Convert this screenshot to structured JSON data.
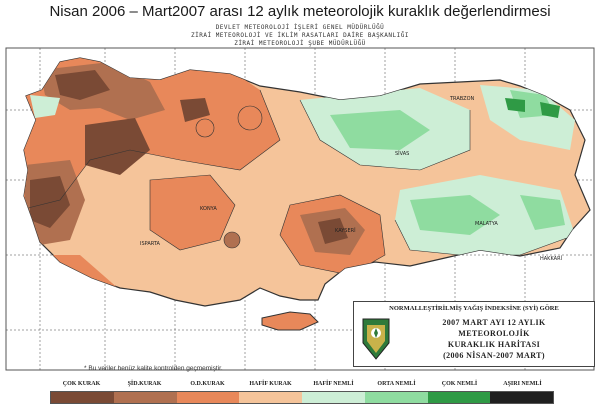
{
  "title": "Nisan 2006 – Mart2007 arası 12 aylık meteorolojik kuraklık değerlendirmesi",
  "institution": {
    "line1": "DEVLET METEOROLOJİ İŞLERİ GENEL MÜDÜRLÜĞÜ",
    "line2": "ZİRAİ METEOROLOJİ VE İKLİM RASATLARI DAİRE BAŞKANLIĞI",
    "line3": "ZİRAİ METEOROLOJİ ŞUBE MÜDÜRLÜĞÜ"
  },
  "legend_box": {
    "heading": "NORMALLEŞTİRİLMİŞ YAĞIŞ İNDEKSİNE (SYİ) GÖRE",
    "line1": "2007 MART AYI 12 AYLIK",
    "line2": "METEOROLOJİK",
    "line3": "KURAKLIK HARİTASI",
    "line4": "(2006 NİSAN-2007 MART)"
  },
  "footnote": "* Bu veriler henüz kalite kontrolden geçmemiştir.",
  "scale": [
    {
      "label": "ÇOK KURAK",
      "color": "#7a4a35"
    },
    {
      "label": "ŞİD.KURAK",
      "color": "#b07050"
    },
    {
      "label": "O.D.KURAK",
      "color": "#e8885a"
    },
    {
      "label": "HAFİF KURAK",
      "color": "#f5c49a"
    },
    {
      "label": "HAFİF NEMLİ",
      "color": "#cdeed6"
    },
    {
      "label": "ORTA NEMLİ",
      "color": "#8fdca0"
    },
    {
      "label": "ÇOK NEMLİ",
      "color": "#2f9a45"
    },
    {
      "label": "AŞIRI NEMLİ",
      "color": "#1f1f1f"
    }
  ]
}
